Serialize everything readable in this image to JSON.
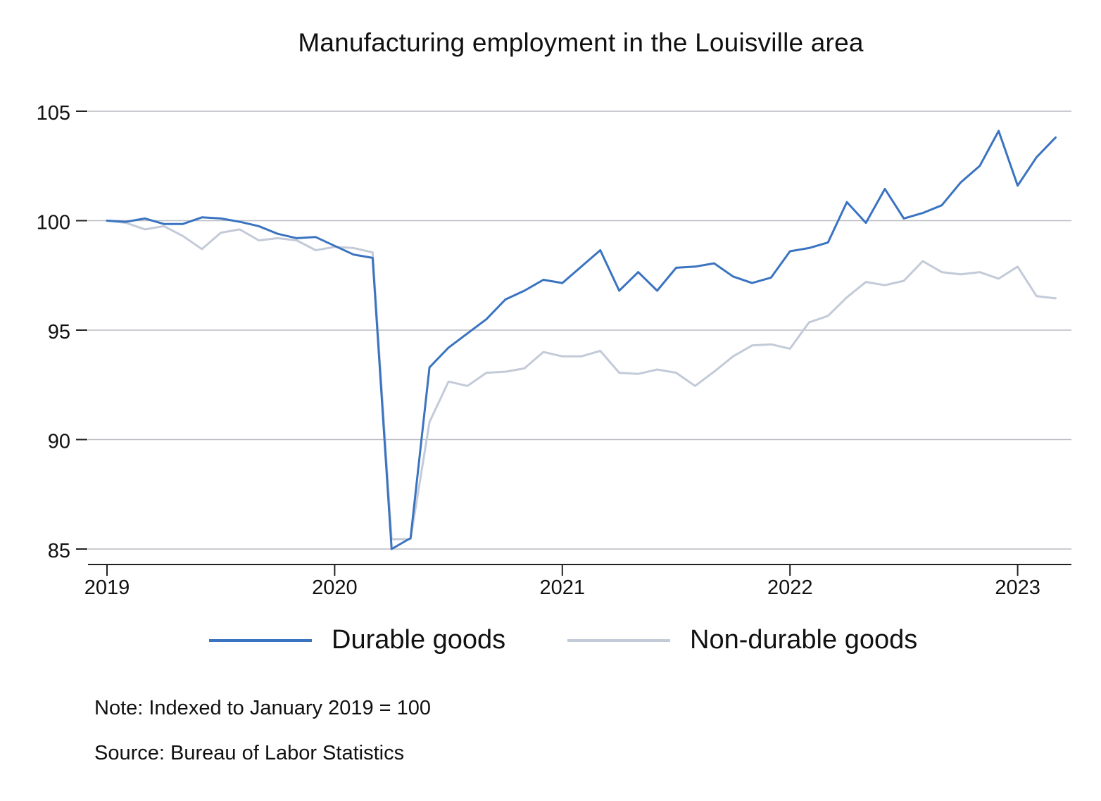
{
  "chart_data": {
    "type": "line",
    "title": "Manufacturing employment in the Louisville area",
    "xlabel": "",
    "ylabel": "",
    "x_tick_labels": [
      "2019",
      "2020",
      "2021",
      "2022",
      "2023"
    ],
    "y_ticks": [
      85,
      90,
      95,
      100,
      105
    ],
    "ylim": [
      85,
      105
    ],
    "x_start": "2019-01",
    "grid": "horizontal",
    "legend_position": "bottom",
    "series": [
      {
        "name": "Durable goods",
        "color": "#3a73c0",
        "values": [
          100.0,
          99.95,
          100.1,
          99.85,
          99.85,
          100.15,
          100.1,
          99.95,
          99.75,
          99.4,
          99.2,
          99.25,
          98.85,
          98.45,
          98.3,
          85.0,
          85.5,
          93.3,
          94.2,
          94.85,
          95.5,
          96.4,
          96.8,
          97.3,
          97.15,
          97.9,
          98.65,
          96.8,
          97.65,
          96.8,
          97.85,
          97.9,
          98.05,
          97.45,
          97.15,
          97.4,
          98.6,
          98.75,
          99.0,
          100.85,
          99.9,
          101.45,
          100.1,
          100.35,
          100.7,
          101.75,
          102.5,
          104.1,
          101.6,
          102.9,
          103.8
        ]
      },
      {
        "name": "Non-durable goods",
        "color": "#c3cad8",
        "values": [
          100.0,
          99.9,
          99.6,
          99.75,
          99.3,
          98.7,
          99.45,
          99.6,
          99.1,
          99.2,
          99.1,
          98.65,
          98.8,
          98.75,
          98.55,
          85.45,
          85.45,
          90.8,
          92.65,
          92.45,
          93.05,
          93.1,
          93.25,
          94.0,
          93.8,
          93.8,
          94.05,
          93.05,
          93.0,
          93.2,
          93.05,
          92.45,
          93.1,
          93.8,
          94.3,
          94.35,
          94.15,
          95.35,
          95.65,
          96.5,
          97.2,
          97.05,
          97.25,
          98.15,
          97.65,
          97.55,
          97.65,
          97.35,
          97.9,
          96.55,
          96.45
        ]
      }
    ]
  },
  "footer": {
    "note": "Note: Indexed to January 2019 = 100",
    "source": "Source: Bureau of Labor Statistics"
  }
}
